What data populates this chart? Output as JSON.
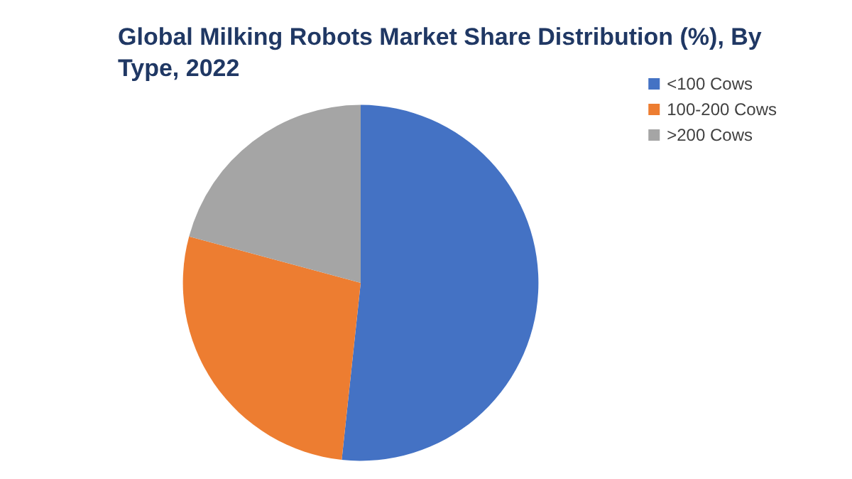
{
  "chart_data": {
    "type": "pie",
    "title": "Global Milking Robots Market Share Distribution (%), By Type, 2022",
    "categories": [
      "<100 Cows",
      "100-200 Cows",
      ">200 Cows"
    ],
    "values": [
      51.7,
      27.5,
      20.8
    ],
    "colors": [
      "#4472c4",
      "#ed7d31",
      "#a5a5a5"
    ],
    "legend": "top right"
  }
}
